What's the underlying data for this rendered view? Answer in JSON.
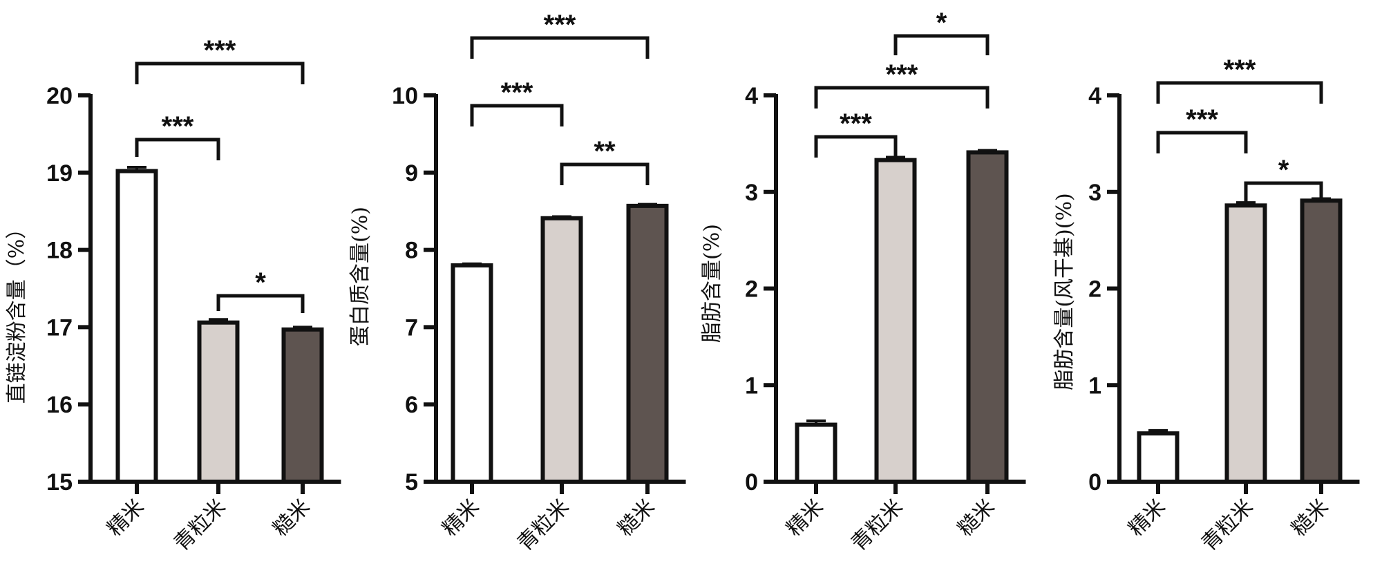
{
  "chart_data": [
    {
      "type": "bar",
      "categories": [
        "精米",
        "青粒米",
        "糙米"
      ],
      "values": [
        19.02,
        17.06,
        16.97
      ],
      "errors": [
        0.05,
        0.04,
        0.03
      ],
      "ylabel": "直链淀粉含量（%）",
      "ylim": [
        15,
        20
      ],
      "yticks": [
        15,
        16,
        17,
        18,
        19,
        20
      ],
      "bar_colors": [
        "#ffffff",
        "#d7d0cc",
        "#5e5450"
      ],
      "significance": [
        {
          "from": 0,
          "to": 2,
          "label": "***"
        },
        {
          "from": 0,
          "to": 1,
          "label": "***"
        },
        {
          "from": 1,
          "to": 2,
          "label": "*"
        }
      ]
    },
    {
      "type": "bar",
      "categories": [
        "精米",
        "青粒米",
        "糙米"
      ],
      "values": [
        7.8,
        8.41,
        8.57
      ],
      "errors": [
        0.02,
        0.02,
        0.02
      ],
      "ylabel": "蛋白质含量(%)",
      "ylim": [
        5,
        10
      ],
      "yticks": [
        5,
        6,
        7,
        8,
        9,
        10
      ],
      "bar_colors": [
        "#ffffff",
        "#d7d0cc",
        "#5e5450"
      ],
      "significance": [
        {
          "from": 0,
          "to": 2,
          "label": "***"
        },
        {
          "from": 0,
          "to": 1,
          "label": "***"
        },
        {
          "from": 1,
          "to": 2,
          "label": "**"
        }
      ]
    },
    {
      "type": "bar",
      "categories": [
        "精米",
        "青粒米",
        "糙米"
      ],
      "values": [
        0.59,
        3.33,
        3.41
      ],
      "errors": [
        0.04,
        0.03,
        0.02
      ],
      "ylabel": "脂肪含量(%)",
      "ylim": [
        0,
        4
      ],
      "yticks": [
        0,
        1,
        2,
        3,
        4
      ],
      "bar_colors": [
        "#ffffff",
        "#d7d0cc",
        "#5e5450"
      ],
      "significance": [
        {
          "from": 1,
          "to": 2,
          "label": "*"
        },
        {
          "from": 0,
          "to": 2,
          "label": "***"
        },
        {
          "from": 0,
          "to": 1,
          "label": "***"
        }
      ]
    },
    {
      "type": "bar",
      "categories": [
        "精米",
        "青粒米",
        "糙米"
      ],
      "values": [
        0.5,
        2.86,
        2.91
      ],
      "errors": [
        0.03,
        0.03,
        0.02
      ],
      "ylabel": "脂肪含量(风干基)(%)",
      "ylim": [
        0,
        4
      ],
      "yticks": [
        0,
        1,
        2,
        3,
        4
      ],
      "bar_colors": [
        "#ffffff",
        "#d7d0cc",
        "#5e5450"
      ],
      "significance": [
        {
          "from": 0,
          "to": 2,
          "label": "***"
        },
        {
          "from": 0,
          "to": 1,
          "label": "***"
        },
        {
          "from": 1,
          "to": 2,
          "label": "*"
        }
      ]
    }
  ]
}
